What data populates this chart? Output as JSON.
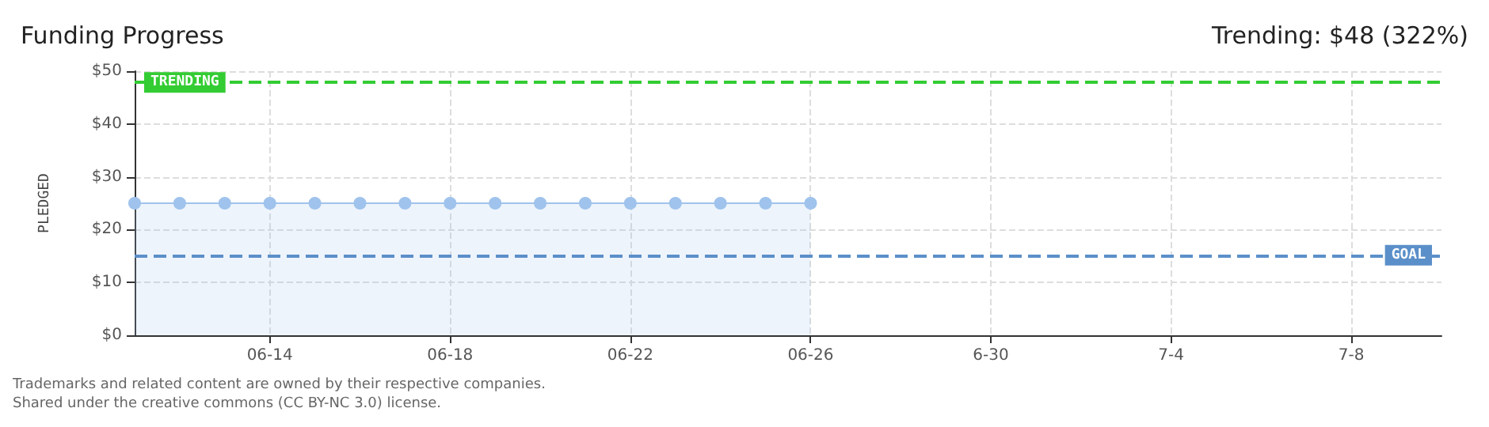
{
  "chart_data": {
    "type": "area",
    "title": "Funding Progress",
    "subtitle": "Trending: $48 (322%)",
    "ylabel": "PLEDGED",
    "x": [
      "--06-11",
      "--06-12",
      "--06-13",
      "--06-14",
      "--06-15",
      "--06-16",
      "--06-17",
      "--06-18",
      "--06-19",
      "--06-20",
      "--06-21",
      "--06-22",
      "--06-23",
      "--06-24",
      "--06-25",
      "--06-26"
    ],
    "series": [
      {
        "color": "#9fc3ec",
        "values": [
          25,
          25,
          25,
          25,
          25,
          25,
          25,
          25,
          25,
          25,
          25,
          25,
          25,
          25,
          25,
          25
        ]
      }
    ],
    "xlim": [
      "--06-11",
      "--07-10"
    ],
    "xticks": [
      {
        "value": "--06-14",
        "label": "06-14"
      },
      {
        "value": "--06-18",
        "label": "06-18"
      },
      {
        "value": "--06-22",
        "label": "06-22"
      },
      {
        "value": "--06-26",
        "label": "06-26"
      },
      {
        "value": "--06-30",
        "label": "6-30"
      },
      {
        "value": "--07-04",
        "label": "7-4"
      },
      {
        "value": "--07-08",
        "label": "7-8"
      }
    ],
    "ylim": [
      0,
      50
    ],
    "yticks": [
      {
        "value": 0,
        "label": "$0"
      },
      {
        "value": 10,
        "label": "$10"
      },
      {
        "value": 20,
        "label": "$20"
      },
      {
        "value": 30,
        "label": "$30"
      },
      {
        "value": 40,
        "label": "$40"
      },
      {
        "value": 50,
        "label": "$50"
      }
    ],
    "ref_lines": [
      {
        "axis": "y",
        "value": 48,
        "label": "TRENDING",
        "color": "#33cc33",
        "line_style": "dashed"
      },
      {
        "axis": "y",
        "value": 15,
        "label": "GOAL",
        "color": "#5b8fc9",
        "line_style": "dashed"
      }
    ],
    "grid": true,
    "marker": "circle",
    "line_style": "solid",
    "annotations": [
      "Trademarks and related content are owned by their respective companies.",
      "Shared under the creative commons (CC BY-NC 3.0) license."
    ]
  }
}
